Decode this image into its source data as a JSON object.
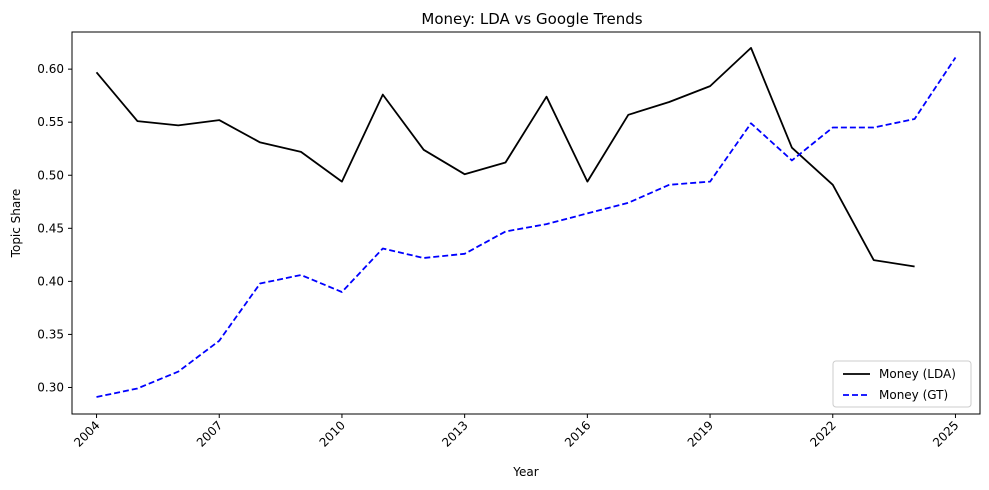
{
  "chart_data": {
    "type": "line",
    "title": "Money: LDA vs Google Trends",
    "xlabel": "Year",
    "ylabel": "Topic Share",
    "xlim": [
      2003.4,
      2025.6
    ],
    "ylim": [
      0.275,
      0.635
    ],
    "xticks": [
      "2004",
      "2007",
      "2010",
      "2013",
      "2016",
      "2019",
      "2022",
      "2025"
    ],
    "yticks": [
      "0.30",
      "0.35",
      "0.40",
      "0.45",
      "0.50",
      "0.55",
      "0.60"
    ],
    "grid": false,
    "legend": "bottom-right",
    "series": [
      {
        "name": "Money (LDA)",
        "color": "#000000",
        "style": "solid",
        "x": [
          2004,
          2005,
          2006,
          2007,
          2008,
          2009,
          2010,
          2011,
          2012,
          2013,
          2014,
          2015,
          2016,
          2017,
          2018,
          2019,
          2020,
          2021,
          2022,
          2023,
          2024
        ],
        "y": [
          0.597,
          0.551,
          0.547,
          0.552,
          0.531,
          0.522,
          0.494,
          0.576,
          0.524,
          0.501,
          0.512,
          0.574,
          0.494,
          0.557,
          0.569,
          0.584,
          0.62,
          0.526,
          0.491,
          0.42,
          0.414
        ]
      },
      {
        "name": "Money (GT)",
        "color": "#0000ff",
        "style": "dashed",
        "x": [
          2004,
          2005,
          2006,
          2007,
          2008,
          2009,
          2010,
          2011,
          2012,
          2013,
          2014,
          2015,
          2016,
          2017,
          2018,
          2019,
          2020,
          2021,
          2022,
          2023,
          2024,
          2025
        ],
        "y": [
          0.291,
          0.299,
          0.315,
          0.344,
          0.398,
          0.406,
          0.39,
          0.431,
          0.422,
          0.426,
          0.447,
          0.454,
          0.464,
          0.474,
          0.491,
          0.494,
          0.549,
          0.514,
          0.545,
          0.545,
          0.553,
          0.611
        ]
      }
    ]
  }
}
